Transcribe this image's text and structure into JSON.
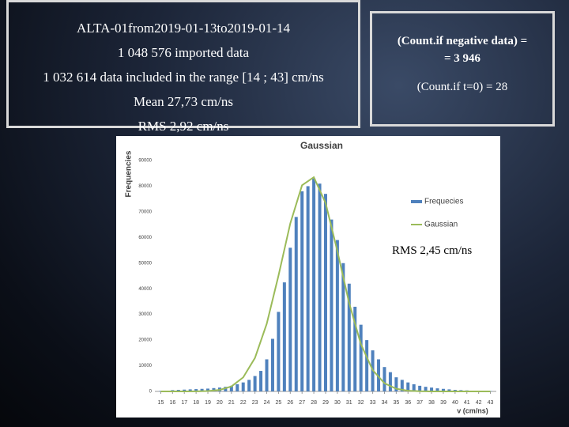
{
  "slide": {
    "info_box": {
      "lines": [
        "ALTA-01from2019-01-13to2019-01-14",
        "1 048 576 imported data",
        "1 032 614  data included in the range  [14 ; 43] cm/ns",
        "Mean 27,73 cm/ns",
        "RMS 2,92 cm/ns"
      ]
    },
    "count_box": {
      "lines": [
        "(Count.if negative data) =",
        "= 3 946",
        "(Count.if t=0) = 28"
      ]
    },
    "annotation": "RMS  2,45 cm/ns"
  },
  "chart_data": {
    "type": "bar",
    "title": "Gaussian",
    "x_label": "v (cm/ns)",
    "y_label": "Frequencies",
    "xlim": [
      14.5,
      43.5
    ],
    "xticks": [
      15,
      16,
      17,
      18,
      19,
      20,
      21,
      22,
      23,
      24,
      25,
      26,
      27,
      28,
      29,
      30,
      31,
      32,
      33,
      34,
      35,
      36,
      37,
      38,
      39,
      40,
      41,
      42,
      43
    ],
    "ylim": [
      0,
      90000
    ],
    "yticks": [
      0,
      10000,
      20000,
      30000,
      40000,
      50000,
      60000,
      70000,
      80000,
      90000
    ],
    "grid": false,
    "legend": "right",
    "series": [
      {
        "name": "Frequecies",
        "type": "bar",
        "color": "#4f81bd",
        "x": [
          15,
          15.5,
          16,
          16.5,
          17,
          17.5,
          18,
          18.5,
          19,
          19.5,
          20,
          20.5,
          21,
          21.5,
          22,
          22.5,
          23,
          23.5,
          24,
          24.5,
          25,
          25.5,
          26,
          26.5,
          27,
          27.5,
          28,
          28.5,
          29,
          29.5,
          30,
          30.5,
          31,
          31.5,
          32,
          32.5,
          33,
          33.5,
          34,
          34.5,
          35,
          35.5,
          36,
          36.5,
          37,
          37.5,
          38,
          38.5,
          39,
          39.5,
          40,
          40.5,
          41,
          41.5,
          42,
          42.5,
          43
        ],
        "values": [
          200,
          300,
          500,
          600,
          700,
          800,
          900,
          1000,
          1100,
          1300,
          1500,
          1800,
          2200,
          2800,
          3500,
          4500,
          6000,
          8000,
          12500,
          20500,
          31000,
          42500,
          56000,
          68000,
          78000,
          80000,
          83000,
          81000,
          77000,
          67000,
          59000,
          50000,
          42000,
          33000,
          26000,
          20000,
          16000,
          12500,
          9500,
          7500,
          5500,
          4500,
          3500,
          2800,
          2200,
          1800,
          1500,
          1200,
          1000,
          800,
          600,
          500,
          400,
          300,
          250,
          200,
          150
        ]
      },
      {
        "name": "Gaussian",
        "type": "line",
        "color": "#9bbb59",
        "x": [
          15,
          16,
          17,
          18,
          19,
          20,
          21,
          22,
          23,
          24,
          25,
          26,
          27,
          28,
          29,
          30,
          31,
          32,
          33,
          34,
          35,
          36,
          37,
          38,
          39,
          40,
          41,
          42,
          43
        ],
        "values": [
          0,
          1,
          6,
          31,
          147,
          577,
          1934,
          5470,
          13050,
          26350,
          45140,
          65470,
          80350,
          83500,
          73440,
          54690,
          34470,
          18400,
          8320,
          3180,
          1030,
          281,
          65,
          13,
          2,
          0,
          0,
          0,
          0
        ]
      }
    ]
  }
}
